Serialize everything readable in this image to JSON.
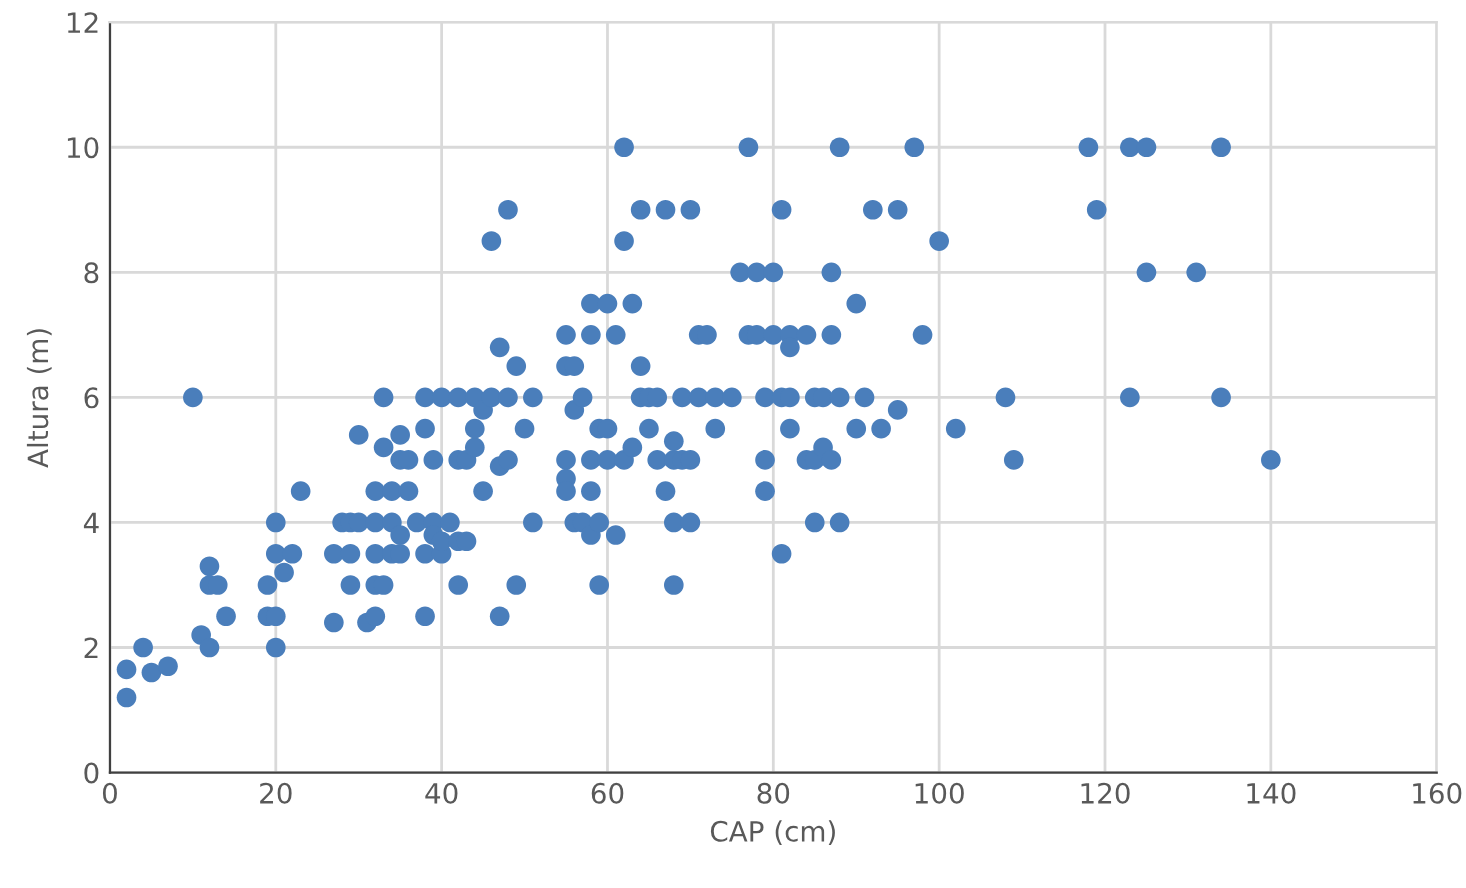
{
  "chart_data": {
    "type": "scatter",
    "xlabel": "CAP (cm)",
    "ylabel": "Altura (m)",
    "xlim": [
      0,
      160
    ],
    "xticks": [
      0,
      20,
      40,
      60,
      80,
      100,
      120,
      140,
      160
    ],
    "ylim": [
      0,
      12
    ],
    "yticks": [
      0,
      2,
      4,
      6,
      8,
      10,
      12
    ],
    "grid": true,
    "marker": "circle",
    "series": [
      {
        "color": "#4a7ebb",
        "x": [
          2,
          2,
          4,
          5,
          7,
          10,
          11,
          12,
          12,
          12,
          13,
          14,
          19,
          19,
          20,
          20,
          20,
          20,
          21,
          22,
          23,
          27,
          27,
          28,
          29,
          29,
          29,
          30,
          30,
          31,
          32,
          32,
          32,
          32,
          32,
          33,
          33,
          33,
          34,
          34,
          34,
          35,
          35,
          35,
          35,
          36,
          36,
          37,
          38,
          38,
          38,
          38,
          39,
          39,
          39,
          40,
          40,
          40,
          41,
          42,
          42,
          42,
          42,
          43,
          43,
          44,
          44,
          44,
          45,
          45,
          46,
          46,
          47,
          47,
          47,
          48,
          48,
          48,
          49,
          49,
          50,
          51,
          51,
          55,
          55,
          55,
          55,
          55,
          56,
          56,
          56,
          57,
          57,
          58,
          58,
          58,
          58,
          58,
          59,
          59,
          59,
          60,
          60,
          60,
          61,
          61,
          62,
          62,
          62,
          63,
          63,
          64,
          64,
          64,
          65,
          65,
          66,
          66,
          67,
          67,
          68,
          68,
          68,
          68,
          69,
          69,
          70,
          70,
          70,
          71,
          71,
          72,
          73,
          73,
          75,
          76,
          77,
          77,
          78,
          78,
          79,
          79,
          79,
          80,
          80,
          81,
          81,
          81,
          82,
          82,
          82,
          82,
          84,
          84,
          85,
          85,
          85,
          86,
          86,
          87,
          87,
          87,
          88,
          88,
          88,
          90,
          90,
          91,
          92,
          93,
          95,
          95,
          97,
          98,
          100,
          102,
          108,
          109,
          118,
          119,
          123,
          123,
          125,
          125,
          131,
          134,
          134,
          140
        ],
        "values": [
          1.2,
          1.65,
          2,
          1.6,
          1.7,
          6,
          2.2,
          2,
          3,
          3.3,
          3,
          2.5,
          3,
          2.5,
          2,
          2.5,
          3.5,
          4,
          3.2,
          3.5,
          4.5,
          2.4,
          3.5,
          4,
          3,
          4,
          3.5,
          5.4,
          4,
          2.4,
          2.5,
          3,
          3.5,
          4.5,
          4,
          3,
          6,
          5.2,
          4.5,
          4,
          3.5,
          3.8,
          5,
          5.4,
          3.5,
          4.5,
          5,
          4,
          2.5,
          3.5,
          6,
          5.5,
          4,
          3.8,
          5,
          3.5,
          3.7,
          6,
          4,
          3,
          3.7,
          6,
          5,
          3.7,
          5,
          5.2,
          5.5,
          6,
          4.5,
          5.8,
          6,
          8.5,
          4.9,
          6.8,
          2.5,
          9,
          5,
          6,
          3,
          6.5,
          5.5,
          4,
          6,
          7,
          6.5,
          5,
          4.7,
          4.5,
          6.5,
          4,
          5.8,
          6,
          4,
          7.5,
          7,
          5,
          4.5,
          3.8,
          3,
          5.5,
          4,
          5.5,
          5,
          7.5,
          3.8,
          7,
          5,
          10,
          8.5,
          5.2,
          7.5,
          6,
          9,
          6.5,
          6,
          5.5,
          5,
          6,
          4.5,
          9,
          5,
          3,
          4,
          5.3,
          6,
          5,
          9,
          4,
          5,
          6,
          7,
          7,
          5.5,
          6,
          6,
          8,
          10,
          7,
          7,
          8,
          6,
          5,
          4.5,
          7,
          8,
          9,
          3.5,
          6,
          7,
          6.8,
          5.5,
          6,
          5,
          7,
          6,
          4,
          5,
          5.2,
          6,
          5,
          7,
          8,
          10,
          4,
          6,
          7.5,
          5.5,
          6,
          9,
          5.5,
          9,
          5.8,
          10,
          7,
          8.5,
          5.5,
          6,
          5,
          10,
          9,
          10,
          6,
          10,
          8,
          8,
          10,
          6,
          5
        ]
      }
    ]
  }
}
